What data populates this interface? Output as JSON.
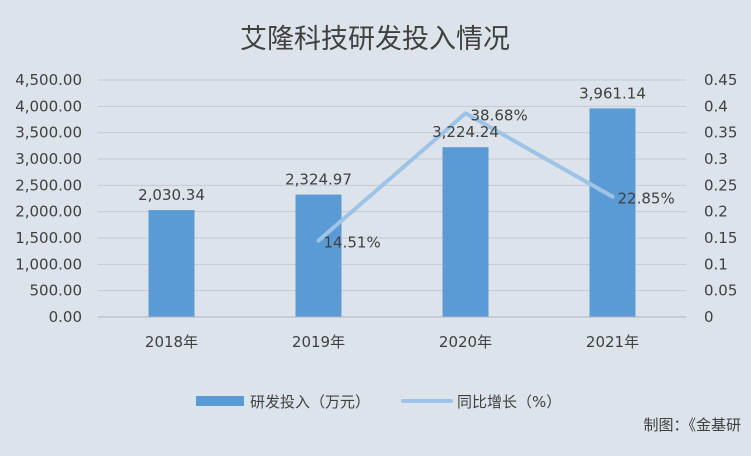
{
  "chart_data": {
    "type": "bar",
    "title": "艾隆科技研发投入情况",
    "categories": [
      "2018年",
      "2019年",
      "2020年",
      "2021年"
    ],
    "series": [
      {
        "name": "研发投入（万元）",
        "type": "bar",
        "axis": "left",
        "values": [
          2030.34,
          2324.97,
          3224.24,
          3961.14
        ],
        "labels": [
          "2,030.34",
          "2,324.97",
          "3,224.24",
          "3,961.14"
        ],
        "color": "#5b9bd5"
      },
      {
        "name": "同比增长（%）",
        "type": "line",
        "axis": "right",
        "values": [
          null,
          0.1451,
          0.3868,
          0.2285
        ],
        "labels": [
          "",
          "14.51%",
          "38.68%",
          "22.85%"
        ],
        "color": "#9dc3e6"
      }
    ],
    "y_left": {
      "min": 0,
      "max": 4500,
      "ticks": [
        "0.00",
        "500.00",
        "1,000.00",
        "1,500.00",
        "2,000.00",
        "2,500.00",
        "3,000.00",
        "3,500.00",
        "4,000.00",
        "4,500.00"
      ]
    },
    "y_right": {
      "min": 0,
      "max": 0.45,
      "ticks": [
        "0",
        "0.05",
        "0.1",
        "0.15",
        "0.2",
        "0.25",
        "0.3",
        "0.35",
        "0.4",
        "0.45"
      ]
    },
    "grid": true,
    "legend": "bottom",
    "source": "制图：《金基研"
  }
}
